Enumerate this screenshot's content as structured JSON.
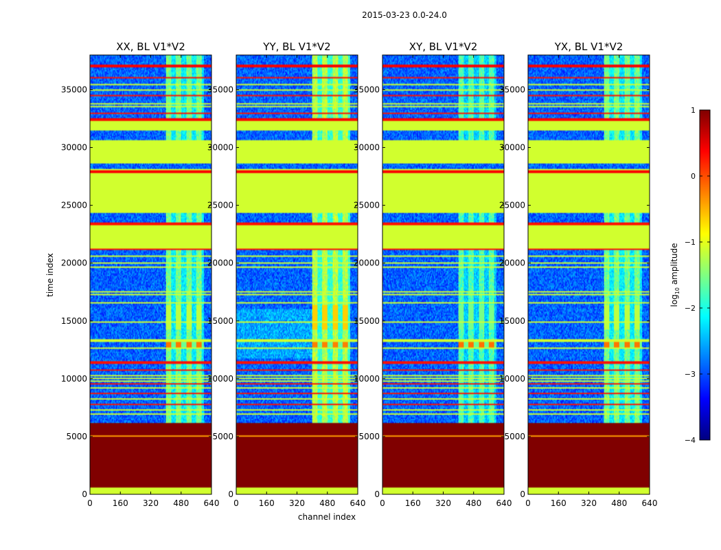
{
  "chart_data": {
    "type": "heatmap",
    "suptitle": "2015-03-23 0.0-24.0",
    "xlabel": "channel index",
    "ylabel": "time index",
    "xlim": [
      0,
      640
    ],
    "ylim": [
      0,
      38000
    ],
    "x_ticks": [
      "0",
      "160",
      "320",
      "480",
      "640"
    ],
    "y_ticks": [
      "0",
      "5000",
      "10000",
      "15000",
      "20000",
      "25000",
      "30000",
      "35000"
    ],
    "panels": [
      {
        "title": "XX, BL V1*V2",
        "signal": 1.0
      },
      {
        "title": "YY, BL V1*V2",
        "signal": 1.25
      },
      {
        "title": "XY, BL V1*V2",
        "signal": 0.85
      },
      {
        "title": "YX, BL V1*V2",
        "signal": 1.0
      }
    ],
    "colorbar": {
      "label_base": "log",
      "label_sub": "10",
      "label_rest": " amplitude",
      "range": [
        -4,
        1
      ],
      "ticks": [
        "1",
        "0",
        "−1",
        "−2",
        "−3",
        "−4"
      ],
      "colormap": "jet"
    },
    "flagged_bands": [
      {
        "from": 0,
        "to": 600,
        "level": -1.1
      },
      {
        "from": 600,
        "to": 1000,
        "level": 1.0
      },
      {
        "from": 1000,
        "to": 6200,
        "level": 1.0
      },
      {
        "from": 5000,
        "to": 5050,
        "level": -0.4
      },
      {
        "from": 21100,
        "to": 21300,
        "level": 0.3
      },
      {
        "from": 21300,
        "to": 22800,
        "level": -1.1
      },
      {
        "from": 22800,
        "to": 23300,
        "level": -1.1
      },
      {
        "from": 23300,
        "to": 23500,
        "level": 0.3
      },
      {
        "from": 24400,
        "to": 27800,
        "level": -1.1
      },
      {
        "from": 27800,
        "to": 28000,
        "level": 0.4
      },
      {
        "from": 28000,
        "to": 28200,
        "level": -1.1
      },
      {
        "from": 28600,
        "to": 30600,
        "level": -1.1
      },
      {
        "from": 31500,
        "to": 32300,
        "level": -1.1
      },
      {
        "from": 32300,
        "to": 32500,
        "level": 0.4
      },
      {
        "from": 36900,
        "to": 37200,
        "level": 0.4
      }
    ],
    "flag_lines": [
      6950,
      7300,
      7800,
      8300,
      8700,
      9200,
      9600,
      9800,
      10000,
      10300,
      10800,
      11300,
      11400,
      12700,
      13300,
      14900,
      16600,
      17300,
      17500,
      19700,
      20000,
      20600,
      33000,
      33500,
      33800,
      34500,
      35000,
      35500,
      36000
    ],
    "hot_band": {
      "from": 12700,
      "to": 13300,
      "level": -0.2
    },
    "rfi_region": {
      "channels": [
        400,
        600
      ],
      "spans": [
        [
          6200,
          21100
        ],
        [
          23500,
          24400
        ],
        [
          30600,
          31500
        ],
        [
          32500,
          38000
        ]
      ]
    }
  }
}
